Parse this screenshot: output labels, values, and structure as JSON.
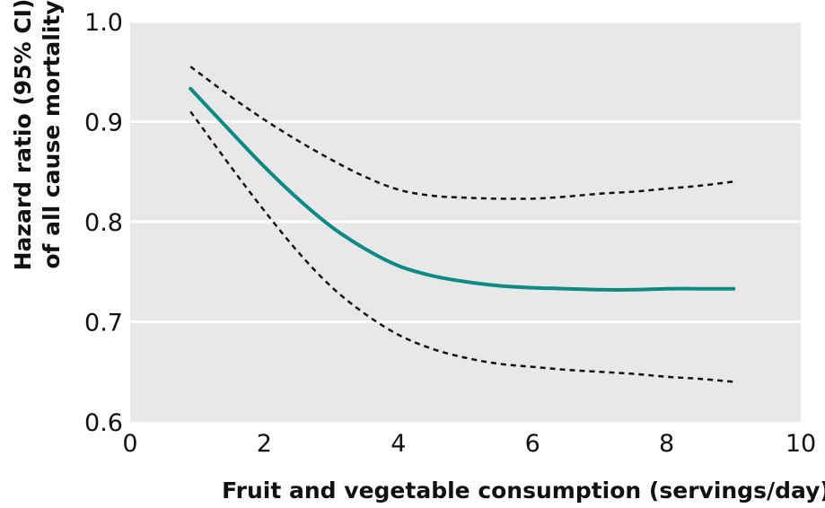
{
  "chart_data": {
    "type": "line",
    "title": "",
    "xlabel": "Fruit and vegetable consumption (servings/day)",
    "ylabel_lines": [
      "Hazard ratio (95% CI)",
      "of all cause mortality"
    ],
    "xlim": [
      0,
      10
    ],
    "ylim": [
      0.6,
      1.0
    ],
    "xticks": [
      0,
      2,
      4,
      6,
      8,
      10
    ],
    "yticks": [
      0.6,
      0.7,
      0.8,
      0.9,
      1.0
    ],
    "xtick_labels": [
      "0",
      "2",
      "4",
      "6",
      "8",
      "10"
    ],
    "ytick_labels": [
      "0.6",
      "0.7",
      "0.8",
      "0.9",
      "1.0"
    ],
    "grid": "horizontal",
    "background_color": "#e8e8e8",
    "series": [
      {
        "role": "estimate",
        "color": "#0e8a86",
        "style": "solid",
        "x": [
          0.9,
          1.5,
          2,
          2.5,
          3,
          3.5,
          4,
          4.5,
          5,
          5.5,
          6,
          6.5,
          7,
          7.5,
          8,
          8.5,
          9
        ],
        "y": [
          0.933,
          0.89,
          0.855,
          0.823,
          0.795,
          0.773,
          0.756,
          0.746,
          0.74,
          0.736,
          0.734,
          0.733,
          0.732,
          0.732,
          0.733,
          0.733,
          0.733
        ]
      },
      {
        "role": "upper",
        "color": "#111111",
        "style": "dashed",
        "x": [
          0.9,
          1.5,
          2,
          2.5,
          3,
          3.5,
          4,
          4.5,
          5,
          5.5,
          6,
          6.5,
          7,
          7.5,
          8,
          8.5,
          9
        ],
        "y": [
          0.955,
          0.925,
          0.902,
          0.881,
          0.862,
          0.845,
          0.832,
          0.826,
          0.824,
          0.823,
          0.823,
          0.825,
          0.828,
          0.83,
          0.833,
          0.836,
          0.84
        ]
      },
      {
        "role": "lower",
        "color": "#111111",
        "style": "dashed",
        "x": [
          0.9,
          1.5,
          2,
          2.5,
          3,
          3.5,
          4,
          4.5,
          5,
          5.5,
          6,
          6.5,
          7,
          7.5,
          8,
          8.5,
          9
        ],
        "y": [
          0.91,
          0.855,
          0.811,
          0.77,
          0.735,
          0.708,
          0.687,
          0.673,
          0.664,
          0.658,
          0.655,
          0.652,
          0.65,
          0.648,
          0.645,
          0.643,
          0.64
        ]
      }
    ]
  }
}
